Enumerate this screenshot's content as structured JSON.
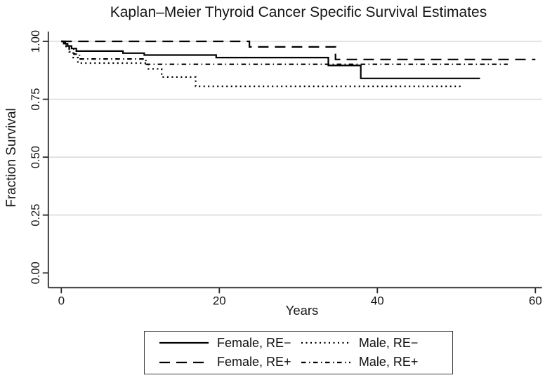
{
  "chart_data": {
    "type": "line",
    "subtype": "kaplan-meier-step-survival",
    "title": "Kaplan–Meier Thyroid Cancer Specific Survival Estimates",
    "xlabel": "Years",
    "ylabel": "Fraction Survival",
    "xlim": [
      0,
      60
    ],
    "ylim": [
      0.0,
      1.0
    ],
    "x_ticks": [
      0,
      20,
      40,
      60
    ],
    "y_ticks": [
      {
        "value": 0.0,
        "label": "0.00"
      },
      {
        "value": 0.25,
        "label": "0.25"
      },
      {
        "value": 0.5,
        "label": "0.50"
      },
      {
        "value": 0.75,
        "label": "0.75"
      },
      {
        "value": 1.0,
        "label": "1.00"
      }
    ],
    "grid": "horizontal light-gray gridlines at 0.25, 0.50, 0.75, 1.00",
    "legend_position": "below-axis, boxed, 2 columns",
    "colors": {
      "line": "#000000",
      "grid": "#dcdcdc",
      "axis": "#2b2b2b",
      "text": "#161616"
    },
    "series": [
      {
        "id": "female-re-neg",
        "name": "Female, RE−",
        "line_style": "solid",
        "points": [
          [
            0,
            1.0
          ],
          [
            0.3,
            0.99
          ],
          [
            0.8,
            0.98
          ],
          [
            1.3,
            0.969
          ],
          [
            1.9,
            0.958
          ],
          [
            7.8,
            0.949
          ],
          [
            10.5,
            0.941
          ],
          [
            19.6,
            0.93
          ],
          [
            33.8,
            0.896
          ],
          [
            37.9,
            0.84
          ]
        ],
        "end_year": 53.0
      },
      {
        "id": "female-re-pos",
        "name": "Female, RE+",
        "line_style": "long-dash",
        "points": [
          [
            0,
            1.0
          ],
          [
            23.8,
            0.976
          ],
          [
            34.7,
            0.922
          ]
        ],
        "end_year": 60.0
      },
      {
        "id": "male-re-neg",
        "name": "Male, RE−",
        "line_style": "dotted",
        "points": [
          [
            0,
            1.0
          ],
          [
            0.5,
            0.978
          ],
          [
            1.0,
            0.955
          ],
          [
            1.5,
            0.93
          ],
          [
            2.1,
            0.906
          ],
          [
            11.0,
            0.881
          ],
          [
            12.7,
            0.846
          ],
          [
            17.0,
            0.806
          ]
        ],
        "end_year": 50.7
      },
      {
        "id": "male-re-pos",
        "name": "Male, RE+",
        "line_style": "dash-dot",
        "points": [
          [
            0,
            1.0
          ],
          [
            0.5,
            0.985
          ],
          [
            1.0,
            0.966
          ],
          [
            1.6,
            0.945
          ],
          [
            2.3,
            0.924
          ],
          [
            10.7,
            0.901
          ]
        ],
        "end_year": 56.5
      }
    ],
    "legend_order": [
      0,
      2,
      1,
      3
    ]
  }
}
